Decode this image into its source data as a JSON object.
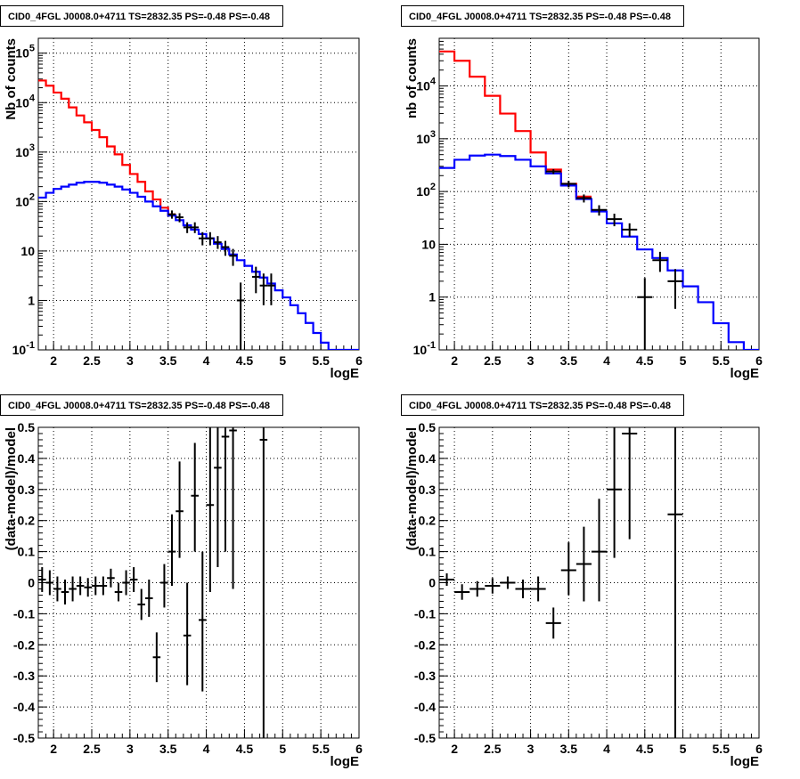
{
  "chart_data": [
    {
      "type": "line",
      "title": "CID0_4FGL J0008.0+4711 TS=2832.35 PS=-0.48 PS=-0.48",
      "xlabel": "logE",
      "ylabel": "Nb of counts",
      "yscale": "log",
      "xlim": [
        1.8,
        6.0
      ],
      "ylim": [
        0.1,
        200000
      ],
      "xticks": [
        "2",
        "2.5",
        "3",
        "3.5",
        "4",
        "4.5",
        "5",
        "5.5",
        "6"
      ],
      "yticks": [
        "10^-1",
        "1",
        "10",
        "10^2",
        "10^3",
        "10^4",
        "10^5"
      ],
      "grid": true,
      "series": [
        {
          "color": "#ff0000",
          "bin_edges": [
            1.8,
            1.9,
            2.0,
            2.1,
            2.2,
            2.3,
            2.4,
            2.5,
            2.6,
            2.7,
            2.8,
            2.9,
            3.0,
            3.1,
            3.2,
            3.3,
            3.4,
            3.5,
            3.6
          ],
          "values": [
            28000,
            22000,
            16000,
            12000,
            8000,
            5500,
            4000,
            2800,
            2000,
            1300,
            900,
            550,
            360,
            250,
            160,
            110,
            75,
            55
          ]
        },
        {
          "color": "#0000ff",
          "bin_edges": [
            1.8,
            1.9,
            2.0,
            2.1,
            2.2,
            2.3,
            2.4,
            2.5,
            2.6,
            2.7,
            2.8,
            2.9,
            3.0,
            3.1,
            3.2,
            3.3,
            3.4,
            3.5,
            3.6,
            3.7,
            3.8,
            3.9,
            4.0,
            4.1,
            4.2,
            4.3,
            4.4,
            4.5,
            4.6,
            4.7,
            4.8,
            4.9,
            5.0,
            5.1,
            5.2,
            5.3,
            5.4,
            5.5,
            5.6,
            5.7,
            5.8,
            5.9,
            6.0
          ],
          "values": [
            120,
            150,
            180,
            200,
            220,
            240,
            250,
            250,
            240,
            220,
            200,
            175,
            150,
            125,
            100,
            80,
            65,
            52,
            42,
            33,
            27,
            22,
            18,
            14,
            11,
            8.5,
            6.5,
            5,
            3.8,
            2.9,
            2.2,
            1.6,
            1.15,
            0.8,
            0.55,
            0.35,
            0.22,
            0.14,
            0.1,
            0.1,
            0.1,
            0.1
          ]
        },
        {
          "name": "data",
          "color": "#000000",
          "points": [
            {
              "x": 3.55,
              "xerr": 0.05,
              "y": 55,
              "ylo": 45,
              "yhi": 66
            },
            {
              "x": 3.65,
              "xerr": 0.05,
              "y": 48,
              "ylo": 38,
              "yhi": 58
            },
            {
              "x": 3.75,
              "xerr": 0.05,
              "y": 30,
              "ylo": 23,
              "yhi": 38
            },
            {
              "x": 3.85,
              "xerr": 0.05,
              "y": 30,
              "ylo": 23,
              "yhi": 38
            },
            {
              "x": 3.95,
              "xerr": 0.05,
              "y": 18,
              "ylo": 13,
              "yhi": 24
            },
            {
              "x": 4.05,
              "xerr": 0.05,
              "y": 18,
              "ylo": 13,
              "yhi": 24
            },
            {
              "x": 4.15,
              "xerr": 0.05,
              "y": 15,
              "ylo": 11,
              "yhi": 20
            },
            {
              "x": 4.25,
              "xerr": 0.05,
              "y": 12,
              "ylo": 8,
              "yhi": 16
            },
            {
              "x": 4.35,
              "xerr": 0.05,
              "y": 8,
              "ylo": 5,
              "yhi": 11
            },
            {
              "x": 4.45,
              "xerr": 0.05,
              "y": 1,
              "ylo": 0.1,
              "yhi": 2.3
            },
            {
              "x": 4.65,
              "xerr": 0.05,
              "y": 3,
              "ylo": 1.4,
              "yhi": 4.8
            },
            {
              "x": 4.75,
              "xerr": 0.05,
              "y": 2,
              "ylo": 0.8,
              "yhi": 3.5
            },
            {
              "x": 4.85,
              "xerr": 0.05,
              "y": 2,
              "ylo": 0.8,
              "yhi": 3.5
            }
          ]
        }
      ]
    },
    {
      "type": "line",
      "title": "CID0_4FGL J0008.0+4711 TS=2832.35 PS=-0.48 PS=-0.48",
      "xlabel": "logE",
      "ylabel": "nb of counts",
      "yscale": "log",
      "xlim": [
        1.8,
        6.0
      ],
      "ylim": [
        0.1,
        80000
      ],
      "xticks": [
        "2",
        "2.5",
        "3",
        "3.5",
        "4",
        "4.5",
        "5",
        "5.5",
        "6"
      ],
      "yticks": [
        "10^-1",
        "1",
        "10",
        "10^2",
        "10^3",
        "10^4"
      ],
      "grid": true,
      "series": [
        {
          "color": "#ff0000",
          "bin_edges": [
            1.8,
            2.0,
            2.2,
            2.4,
            2.6,
            2.8,
            3.0,
            3.2,
            3.4,
            3.6,
            3.8
          ],
          "values": [
            45000,
            30000,
            15000,
            6500,
            3000,
            1400,
            550,
            260,
            140,
            80
          ]
        },
        {
          "color": "#0000ff",
          "bin_edges": [
            1.8,
            2.0,
            2.2,
            2.4,
            2.6,
            2.8,
            3.0,
            3.2,
            3.4,
            3.6,
            3.8,
            4.0,
            4.2,
            4.4,
            4.6,
            4.8,
            5.0,
            5.2,
            5.4,
            5.6,
            5.8,
            6.0
          ],
          "values": [
            280,
            400,
            480,
            500,
            470,
            400,
            300,
            220,
            130,
            72,
            42,
            25,
            14,
            8,
            5.5,
            3.2,
            1.6,
            0.8,
            0.32,
            0.14,
            0.1
          ]
        },
        {
          "name": "data",
          "color": "#000000",
          "points": [
            {
              "x": 3.3,
              "xerr": 0.1,
              "y": 240,
              "ylo": 215,
              "yhi": 265
            },
            {
              "x": 3.5,
              "xerr": 0.1,
              "y": 140,
              "ylo": 120,
              "yhi": 160
            },
            {
              "x": 3.7,
              "xerr": 0.1,
              "y": 75,
              "ylo": 62,
              "yhi": 88
            },
            {
              "x": 3.9,
              "xerr": 0.1,
              "y": 45,
              "ylo": 35,
              "yhi": 55
            },
            {
              "x": 4.1,
              "xerr": 0.1,
              "y": 30,
              "ylo": 22,
              "yhi": 38
            },
            {
              "x": 4.3,
              "xerr": 0.1,
              "y": 19,
              "ylo": 14,
              "yhi": 25
            },
            {
              "x": 4.5,
              "xerr": 0.1,
              "y": 1,
              "ylo": 0.1,
              "yhi": 2.3
            },
            {
              "x": 4.7,
              "xerr": 0.1,
              "y": 5,
              "ylo": 3,
              "yhi": 7.2
            },
            {
              "x": 4.9,
              "xerr": 0.1,
              "y": 2,
              "ylo": 0.6,
              "yhi": 3.4
            }
          ]
        }
      ]
    },
    {
      "type": "scatter",
      "title": "CID0_4FGL J0008.0+4711 TS=2832.35 PS=-0.48 PS=-0.48",
      "xlabel": "logE",
      "ylabel": "(data-model)/model",
      "yscale": "linear",
      "xlim": [
        1.8,
        6.0
      ],
      "ylim": [
        -0.5,
        0.5
      ],
      "xticks": [
        "2",
        "2.5",
        "3",
        "3.5",
        "4",
        "4.5",
        "5",
        "5.5",
        "6"
      ],
      "yticks": [
        "-0.5",
        "-0.4",
        "-0.3",
        "-0.2",
        "-0.1",
        "0",
        "0.1",
        "0.2",
        "0.3",
        "0.4",
        "0.5"
      ],
      "grid": true,
      "series": [
        {
          "name": "residuals",
          "color": "#000000",
          "points": [
            {
              "x": 1.85,
              "xerr": 0.05,
              "y": 0.01,
              "ylo": -0.03,
              "yhi": 0.05
            },
            {
              "x": 1.95,
              "xerr": 0.05,
              "y": 0.0,
              "ylo": -0.04,
              "yhi": 0.04
            },
            {
              "x": 2.05,
              "xerr": 0.05,
              "y": -0.02,
              "ylo": -0.06,
              "yhi": 0.02
            },
            {
              "x": 2.15,
              "xerr": 0.05,
              "y": -0.03,
              "ylo": -0.07,
              "yhi": 0.01
            },
            {
              "x": 2.25,
              "xerr": 0.05,
              "y": -0.02,
              "ylo": -0.06,
              "yhi": 0.02
            },
            {
              "x": 2.35,
              "xerr": 0.05,
              "y": -0.01,
              "ylo": -0.04,
              "yhi": 0.02
            },
            {
              "x": 2.45,
              "xerr": 0.05,
              "y": -0.015,
              "ylo": -0.045,
              "yhi": 0.015
            },
            {
              "x": 2.55,
              "xerr": 0.05,
              "y": -0.01,
              "ylo": -0.04,
              "yhi": 0.02
            },
            {
              "x": 2.65,
              "xerr": 0.05,
              "y": -0.01,
              "ylo": -0.04,
              "yhi": 0.02
            },
            {
              "x": 2.75,
              "xerr": 0.05,
              "y": 0.015,
              "ylo": -0.015,
              "yhi": 0.045
            },
            {
              "x": 2.85,
              "xerr": 0.05,
              "y": -0.03,
              "ylo": -0.06,
              "yhi": 0.0
            },
            {
              "x": 2.95,
              "xerr": 0.05,
              "y": 0.0,
              "ylo": -0.04,
              "yhi": 0.04
            },
            {
              "x": 3.05,
              "xerr": 0.05,
              "y": 0.01,
              "ylo": -0.03,
              "yhi": 0.05
            },
            {
              "x": 3.15,
              "xerr": 0.05,
              "y": -0.07,
              "ylo": -0.12,
              "yhi": -0.02
            },
            {
              "x": 3.25,
              "xerr": 0.05,
              "y": -0.05,
              "ylo": -0.11,
              "yhi": 0.01
            },
            {
              "x": 3.35,
              "xerr": 0.05,
              "y": -0.24,
              "ylo": -0.32,
              "yhi": -0.16
            },
            {
              "x": 3.45,
              "xerr": 0.05,
              "y": 0.0,
              "ylo": -0.08,
              "yhi": 0.06
            },
            {
              "x": 3.55,
              "xerr": 0.05,
              "y": 0.1,
              "ylo": -0.01,
              "yhi": 0.22
            },
            {
              "x": 3.65,
              "xerr": 0.05,
              "y": 0.23,
              "ylo": 0.08,
              "yhi": 0.39
            },
            {
              "x": 3.75,
              "xerr": 0.05,
              "y": -0.17,
              "ylo": -0.33,
              "yhi": 0.0
            },
            {
              "x": 3.85,
              "xerr": 0.05,
              "y": 0.28,
              "ylo": 0.1,
              "yhi": 0.45
            },
            {
              "x": 3.95,
              "xerr": 0.05,
              "y": -0.12,
              "ylo": -0.35,
              "yhi": 0.1
            },
            {
              "x": 4.05,
              "xerr": 0.05,
              "y": 0.25,
              "ylo": -0.03,
              "yhi": 0.5
            },
            {
              "x": 4.15,
              "xerr": 0.05,
              "y": 0.37,
              "ylo": 0.05,
              "yhi": 0.5
            },
            {
              "x": 4.25,
              "xerr": 0.05,
              "y": 0.47,
              "ylo": 0.1,
              "yhi": 0.5
            },
            {
              "x": 4.35,
              "xerr": 0.05,
              "y": 0.49,
              "ylo": -0.02,
              "yhi": 0.5
            },
            {
              "x": 4.75,
              "xerr": 0.05,
              "y": 0.46,
              "ylo": -0.5,
              "yhi": 0.5
            }
          ]
        }
      ]
    },
    {
      "type": "scatter",
      "title": "CID0_4FGL J0008.0+4711 TS=2832.35 PS=-0.48 PS=-0.48",
      "xlabel": "logE",
      "ylabel": "(data-model)/model",
      "yscale": "linear",
      "xlim": [
        1.8,
        6.0
      ],
      "ylim": [
        -0.5,
        0.5
      ],
      "xticks": [
        "2",
        "2.5",
        "3",
        "3.5",
        "4",
        "4.5",
        "5",
        "5.5",
        "6"
      ],
      "yticks": [
        "-0.5",
        "-0.4",
        "-0.3",
        "-0.2",
        "-0.1",
        "0",
        "0.1",
        "0.2",
        "0.3",
        "0.4",
        "0.5"
      ],
      "grid": true,
      "series": [
        {
          "name": "residuals",
          "color": "#000000",
          "points": [
            {
              "x": 1.9,
              "xerr": 0.1,
              "y": 0.01,
              "ylo": -0.01,
              "yhi": 0.03
            },
            {
              "x": 2.1,
              "xerr": 0.1,
              "y": -0.03,
              "ylo": -0.055,
              "yhi": -0.005
            },
            {
              "x": 2.3,
              "xerr": 0.1,
              "y": -0.02,
              "ylo": -0.045,
              "yhi": 0.005
            },
            {
              "x": 2.5,
              "xerr": 0.1,
              "y": -0.01,
              "ylo": -0.035,
              "yhi": 0.015
            },
            {
              "x": 2.7,
              "xerr": 0.1,
              "y": 0.0,
              "ylo": -0.02,
              "yhi": 0.02
            },
            {
              "x": 2.9,
              "xerr": 0.1,
              "y": -0.02,
              "ylo": -0.05,
              "yhi": 0.01
            },
            {
              "x": 3.1,
              "xerr": 0.1,
              "y": -0.02,
              "ylo": -0.06,
              "yhi": 0.02
            },
            {
              "x": 3.3,
              "xerr": 0.1,
              "y": -0.13,
              "ylo": -0.18,
              "yhi": -0.08
            },
            {
              "x": 3.5,
              "xerr": 0.1,
              "y": 0.04,
              "ylo": -0.04,
              "yhi": 0.13
            },
            {
              "x": 3.7,
              "xerr": 0.1,
              "y": 0.06,
              "ylo": -0.06,
              "yhi": 0.18
            },
            {
              "x": 3.9,
              "xerr": 0.1,
              "y": 0.1,
              "ylo": -0.06,
              "yhi": 0.27
            },
            {
              "x": 4.1,
              "xerr": 0.1,
              "y": 0.3,
              "ylo": 0.08,
              "yhi": 0.5
            },
            {
              "x": 4.3,
              "xerr": 0.1,
              "y": 0.48,
              "ylo": 0.14,
              "yhi": 0.5
            },
            {
              "x": 4.9,
              "xerr": 0.1,
              "y": 0.22,
              "ylo": -0.5,
              "yhi": 0.5
            }
          ]
        }
      ]
    }
  ]
}
